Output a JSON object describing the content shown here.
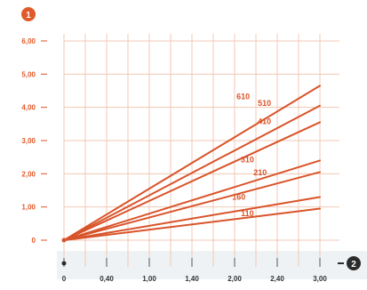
{
  "colors": {
    "accent": "#d9542a",
    "grid": "#f0c8b4",
    "badge_orange": "#e05a2b",
    "badge_dark": "#2b2b2b",
    "axis": "#555555",
    "x_band": "#eef2f5"
  },
  "badges": {
    "y_badge": "1",
    "x_badge": "2"
  },
  "chart_data": {
    "type": "line",
    "x_ticks": [
      "0",
      "0,40",
      "1,00",
      "1,40",
      "2,00",
      "2,40",
      "3,00"
    ],
    "y_ticks": [
      "0",
      "1,00",
      "2,00",
      "3,00",
      "4,00",
      "5,00",
      "6,00"
    ],
    "xlim": [
      0,
      3
    ],
    "ylim": [
      0,
      6
    ],
    "grid": true,
    "series": [
      {
        "name": "610",
        "x": [
          0,
          3
        ],
        "y": [
          0,
          4.65
        ]
      },
      {
        "name": "510",
        "x": [
          0,
          3
        ],
        "y": [
          0,
          4.05
        ]
      },
      {
        "name": "410",
        "x": [
          0,
          3
        ],
        "y": [
          0,
          3.55
        ]
      },
      {
        "name": "310",
        "x": [
          0,
          3
        ],
        "y": [
          0,
          2.4
        ]
      },
      {
        "name": "210",
        "x": [
          0,
          3
        ],
        "y": [
          0,
          2.05
        ]
      },
      {
        "name": "160",
        "x": [
          0,
          3
        ],
        "y": [
          0,
          1.3
        ]
      },
      {
        "name": "110",
        "x": [
          0,
          3
        ],
        "y": [
          0,
          0.95
        ]
      }
    ],
    "label_positions_note": "",
    "labels": [
      {
        "text": "610",
        "x": 2.1,
        "y": 4.25
      },
      {
        "text": "510",
        "x": 2.35,
        "y": 4.05
      },
      {
        "text": "410",
        "x": 2.35,
        "y": 3.5
      },
      {
        "text": "310",
        "x": 2.15,
        "y": 2.35
      },
      {
        "text": "210",
        "x": 2.3,
        "y": 1.95
      },
      {
        "text": "160",
        "x": 2.05,
        "y": 1.22
      },
      {
        "text": "110",
        "x": 2.15,
        "y": 0.72
      }
    ]
  }
}
